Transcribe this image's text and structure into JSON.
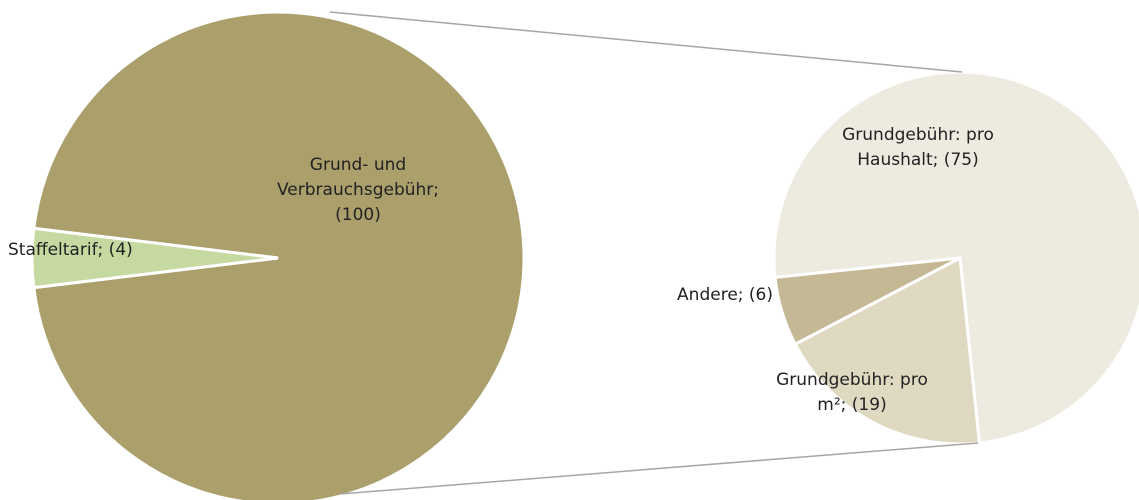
{
  "chart_data": [
    {
      "type": "pie",
      "labels": [
        "Grund- und\nVerbrauchsgebühr;\n(100)",
        "Staffeltarif; (4)"
      ],
      "values": [
        100,
        4
      ],
      "colors": [
        "#ab9f6c",
        "#c5d9a0"
      ]
    },
    {
      "type": "pie",
      "labels": [
        "Grundgebühr: pro\nHaushalt; (75)",
        "Grundgebühr: pro\nm²; (19)",
        "Andere; (6)"
      ],
      "values": [
        75,
        19,
        6
      ],
      "colors": [
        "#edeae0",
        "#dfd9c2",
        "#c4b994"
      ]
    }
  ]
}
